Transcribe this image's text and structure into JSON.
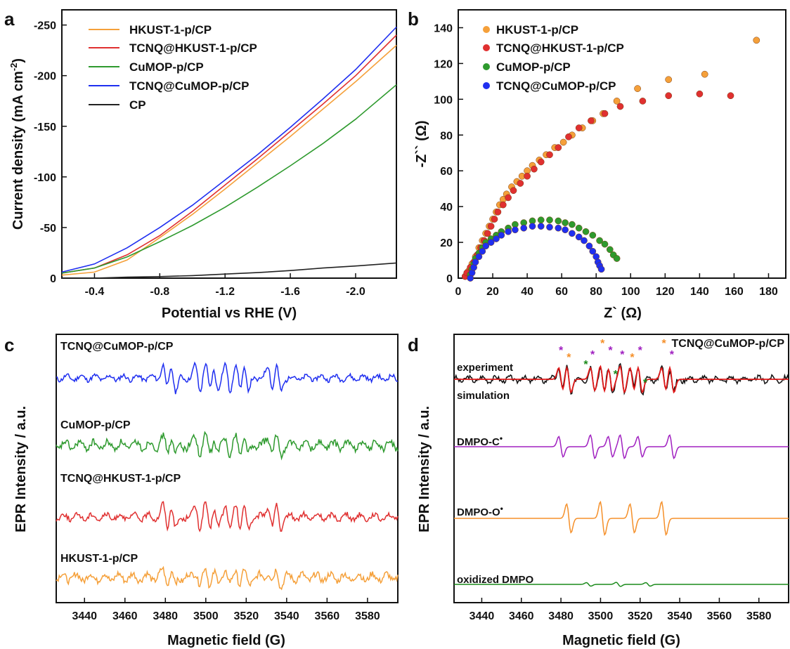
{
  "panels": {
    "a": {
      "letter": "a",
      "xlabel": "Potential vs RHE (V)",
      "ylabel_main": "Current density (mA cm",
      "ylabel_sup": "-2",
      "ylabel_close": ")",
      "xticks": [
        "-0.4",
        "-0.8",
        "-1.2",
        "-1.6",
        "-2.0"
      ],
      "yticks": [
        "0",
        "-50",
        "-100",
        "-150",
        "-200",
        "-250"
      ],
      "legend": [
        {
          "name": "HKUST-1-p/CP",
          "color": "#f5a03a"
        },
        {
          "name": "TCNQ@HKUST-1-p/CP",
          "color": "#e03030"
        },
        {
          "name": "CuMOP-p/CP",
          "color": "#2e9a2e"
        },
        {
          "name": "TCNQ@CuMOP-p/CP",
          "color": "#1f2ff0"
        },
        {
          "name": "CP",
          "color": "#222222"
        }
      ]
    },
    "b": {
      "letter": "b",
      "xlabel": "Z` (Ω)",
      "ylabel": "-Z`` (Ω)",
      "xticks": [
        "0",
        "20",
        "40",
        "60",
        "80",
        "100",
        "120",
        "140",
        "160",
        "180"
      ],
      "yticks": [
        "0",
        "20",
        "40",
        "60",
        "80",
        "100",
        "120",
        "140"
      ],
      "legend": [
        {
          "name": "HKUST-1-p/CP",
          "color": "#f5a03a"
        },
        {
          "name": "TCNQ@HKUST-1-p/CP",
          "color": "#e03030"
        },
        {
          "name": "CuMOP-p/CP",
          "color": "#2e9a2e"
        },
        {
          "name": "TCNQ@CuMOP-p/CP",
          "color": "#1f2ff0"
        }
      ]
    },
    "c": {
      "letter": "c",
      "xlabel": "Magnetic field (G)",
      "ylabel": "EPR Intensity / a.u.",
      "xticks": [
        "3440",
        "3460",
        "3480",
        "3500",
        "3520",
        "3540",
        "3560",
        "3580"
      ],
      "traces": [
        {
          "name": "TCNQ@CuMOP-p/CP",
          "color": "#1f2ff0"
        },
        {
          "name": "CuMOP-p/CP",
          "color": "#2e9a2e"
        },
        {
          "name": "TCNQ@HKUST-1-p/CP",
          "color": "#e03030"
        },
        {
          "name": "HKUST-1-p/CP",
          "color": "#f5a03a"
        }
      ]
    },
    "d": {
      "letter": "d",
      "title": "TCNQ@CuMOP-p/CP",
      "xlabel": "Magnetic field (G)",
      "ylabel": "EPR Intensity / a.u.",
      "xticks": [
        "3440",
        "3460",
        "3480",
        "3500",
        "3520",
        "3540",
        "3560",
        "3580"
      ],
      "labels": [
        {
          "text": "experiment",
          "color": "#111111"
        },
        {
          "text": "simulation",
          "color": "#e01818"
        },
        {
          "text": "DMPO-C",
          "sup": "•",
          "color": "#a020c0"
        },
        {
          "text": "DMPO-O",
          "sup": "•",
          "color": "#f5902a"
        },
        {
          "text": "oxidized DMPO",
          "color": "#1a8a1a"
        }
      ]
    }
  },
  "chart_data": [
    {
      "type": "line",
      "title": "",
      "xlabel": "Potential vs RHE (V)",
      "ylabel": "Current density (mA cm-2)",
      "xlim": [
        -0.2,
        -2.25
      ],
      "ylim": [
        0,
        -265
      ],
      "x": [
        -0.2,
        -0.4,
        -0.6,
        -0.8,
        -1.0,
        -1.2,
        -1.4,
        -1.6,
        -1.8,
        -2.0,
        -2.25
      ],
      "series": [
        {
          "name": "HKUST-1-p/CP",
          "values": [
            -3,
            -6,
            -18,
            -40,
            -63,
            -88,
            -114,
            -140,
            -167,
            -194,
            -230
          ]
        },
        {
          "name": "TCNQ@HKUST-1-p/CP",
          "values": [
            -5,
            -10,
            -23,
            -42,
            -66,
            -92,
            -118,
            -145,
            -172,
            -200,
            -240
          ]
        },
        {
          "name": "CuMOP-p/CP",
          "values": [
            -5,
            -10,
            -21,
            -36,
            -52,
            -70,
            -90,
            -111,
            -133,
            -157,
            -191
          ]
        },
        {
          "name": "TCNQ@CuMOP-p/CP",
          "values": [
            -6,
            -14,
            -30,
            -50,
            -72,
            -97,
            -122,
            -149,
            -177,
            -206,
            -248
          ]
        },
        {
          "name": "CP",
          "values": [
            0,
            0,
            -1,
            -1.5,
            -2.5,
            -4,
            -5.5,
            -7.5,
            -10,
            -12,
            -15
          ]
        }
      ]
    },
    {
      "type": "scatter",
      "title": "",
      "xlabel": "Z` (Ω)",
      "ylabel": "-Z`` (Ω)",
      "xlim": [
        0,
        190
      ],
      "ylim": [
        0,
        150
      ],
      "series": [
        {
          "name": "HKUST-1-p/CP",
          "points": [
            [
              4,
              1
            ],
            [
              6,
              4
            ],
            [
              8,
              8
            ],
            [
              10,
              12
            ],
            [
              12,
              17
            ],
            [
              14,
              21
            ],
            [
              16,
              25
            ],
            [
              18,
              29
            ],
            [
              20,
              33
            ],
            [
              22,
              37
            ],
            [
              24,
              41
            ],
            [
              26,
              44
            ],
            [
              28,
              47
            ],
            [
              31,
              51
            ],
            [
              34,
              54
            ],
            [
              37,
              57
            ],
            [
              40,
              60
            ],
            [
              43,
              63
            ],
            [
              47,
              66
            ],
            [
              51,
              69
            ],
            [
              56,
              73
            ],
            [
              61,
              76
            ],
            [
              66,
              80
            ],
            [
              72,
              84
            ],
            [
              78,
              88
            ],
            [
              84,
              92
            ],
            [
              92,
              99
            ],
            [
              104,
              106
            ],
            [
              122,
              111
            ],
            [
              143,
              114
            ],
            [
              173,
              133
            ]
          ]
        },
        {
          "name": "TCNQ@HKUST-1-p/CP",
          "points": [
            [
              4,
              1
            ],
            [
              5,
              3
            ],
            [
              7,
              6
            ],
            [
              9,
              9
            ],
            [
              11,
              13
            ],
            [
              13,
              17
            ],
            [
              15,
              21
            ],
            [
              17,
              25
            ],
            [
              19,
              29
            ],
            [
              21,
              33
            ],
            [
              23,
              37
            ],
            [
              26,
              41
            ],
            [
              29,
              45
            ],
            [
              32,
              49
            ],
            [
              36,
              53
            ],
            [
              40,
              57
            ],
            [
              44,
              61
            ],
            [
              48,
              65
            ],
            [
              53,
              69
            ],
            [
              58,
              73
            ],
            [
              64,
              79
            ],
            [
              70,
              84
            ],
            [
              77,
              88
            ],
            [
              85,
              92
            ],
            [
              94,
              96
            ],
            [
              107,
              99
            ],
            [
              122,
              102
            ],
            [
              140,
              103
            ],
            [
              158,
              102
            ]
          ]
        },
        {
          "name": "CuMOP-p/CP",
          "points": [
            [
              7,
              2
            ],
            [
              8,
              5
            ],
            [
              9,
              8
            ],
            [
              10,
              11
            ],
            [
              12,
              14
            ],
            [
              14,
              17
            ],
            [
              16,
              20
            ],
            [
              19,
              22
            ],
            [
              22,
              24
            ],
            [
              25,
              26
            ],
            [
              29,
              28
            ],
            [
              33,
              30
            ],
            [
              38,
              31
            ],
            [
              43,
              32
            ],
            [
              48,
              32.5
            ],
            [
              53,
              32.5
            ],
            [
              58,
              32
            ],
            [
              62,
              31
            ],
            [
              66,
              30
            ],
            [
              70,
              28
            ],
            [
              74,
              26
            ],
            [
              78,
              24
            ],
            [
              82,
              21
            ],
            [
              85,
              19
            ],
            [
              88,
              16
            ],
            [
              90,
              13
            ],
            [
              92,
              11
            ]
          ]
        },
        {
          "name": "TCNQ@CuMOP-p/CP",
          "points": [
            [
              7,
              0
            ],
            [
              8,
              3
            ],
            [
              9,
              6
            ],
            [
              10,
              9
            ],
            [
              12,
              12
            ],
            [
              14,
              15
            ],
            [
              16,
              18
            ],
            [
              19,
              20
            ],
            [
              22,
              22
            ],
            [
              25,
              24
            ],
            [
              29,
              26
            ],
            [
              33,
              27
            ],
            [
              38,
              28
            ],
            [
              43,
              29
            ],
            [
              48,
              29
            ],
            [
              53,
              28.5
            ],
            [
              58,
              28
            ],
            [
              62,
              27
            ],
            [
              66,
              25
            ],
            [
              70,
              23
            ],
            [
              73,
              21
            ],
            [
              76,
              18
            ],
            [
              78,
              15
            ],
            [
              80,
              12
            ],
            [
              81,
              9
            ],
            [
              82,
              7
            ],
            [
              83,
              5
            ]
          ]
        }
      ]
    },
    {
      "type": "line",
      "title": "",
      "xlabel": "Magnetic field (G)",
      "ylabel": "EPR Intensity / a.u.",
      "xlim": [
        3426,
        3595
      ],
      "series": [
        {
          "name": "TCNQ@CuMOP-p/CP",
          "peaks": [
            3480,
            3484,
            3496,
            3501,
            3505,
            3511,
            3516,
            3520,
            3532,
            3536
          ]
        },
        {
          "name": "CuMOP-p/CP",
          "peaks": [
            3480,
            3484,
            3496,
            3501,
            3505,
            3511,
            3516,
            3520,
            3532,
            3536
          ]
        },
        {
          "name": "TCNQ@HKUST-1-p/CP",
          "peaks": [
            3480,
            3484,
            3496,
            3501,
            3505,
            3511,
            3516,
            3520,
            3532,
            3536
          ]
        },
        {
          "name": "HKUST-1-p/CP",
          "peaks": [
            3480,
            3484,
            3496,
            3501,
            3505,
            3511,
            3516,
            3520,
            3532,
            3536
          ]
        }
      ]
    },
    {
      "type": "line",
      "title": "TCNQ@CuMOP-p/CP",
      "xlabel": "Magnetic field (G)",
      "ylabel": "EPR Intensity / a.u.",
      "xlim": [
        3426,
        3595
      ],
      "series": [
        {
          "name": "experiment",
          "peaks": [
            3480,
            3484,
            3496,
            3501,
            3505,
            3511,
            3516,
            3520,
            3532,
            3536
          ]
        },
        {
          "name": "simulation",
          "peaks": [
            3480,
            3484,
            3496,
            3501,
            3505,
            3511,
            3516,
            3520,
            3532,
            3536
          ]
        },
        {
          "name": "DMPO-C•",
          "peaks": [
            3480,
            3496,
            3505,
            3511,
            3520,
            3536
          ]
        },
        {
          "name": "DMPO-O•",
          "peaks": [
            3484,
            3501,
            3516,
            3532
          ]
        },
        {
          "name": "oxidized DMPO",
          "peaks": [
            3494,
            3509,
            3524
          ]
        }
      ]
    }
  ]
}
